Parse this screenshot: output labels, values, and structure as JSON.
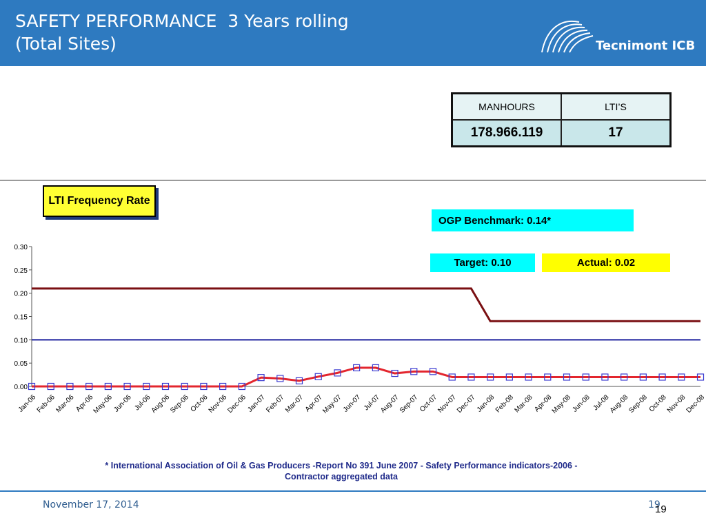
{
  "header": {
    "title": "SAFETY PERFORMANCE  3 Years rolling\n(Total Sites)",
    "brand": "Tecnimont ICB",
    "colors": {
      "banner": "#2e7ac0"
    }
  },
  "stats": {
    "manhours_label": "MANHOURS",
    "ltis_label": "LTI’S",
    "manhours_value": "178.966.119",
    "ltis_value": "17"
  },
  "lti_title": "LTI Frequency Rate",
  "benchmark": "OGP Benchmark: 0.14*",
  "target": "Target: 0.10",
  "actual": "Actual: 0.02",
  "footnote": "* International Association of Oil & Gas Producers -Report No 391 June 2007 -  Safety Performance indicators-2006 - Contractor aggregated data",
  "footer": {
    "date": "November 17, 2014",
    "page_a": "19",
    "page_b": "19"
  },
  "chart_data": {
    "type": "line",
    "categories": [
      "Jan-06",
      "Feb-06",
      "Mar-06",
      "Apr-06",
      "May-06",
      "Jun-06",
      "Jul-06",
      "Aug-06",
      "Sep-06",
      "Oct-06",
      "Nov-06",
      "Dec-06",
      "Jan-07",
      "Feb-07",
      "Mar-07",
      "Apr-07",
      "May-07",
      "Jun-07",
      "Jul-07",
      "Aug-07",
      "Sep-07",
      "Oct-07",
      "Nov-07",
      "Dec-07",
      "Jan-08",
      "Feb-08",
      "Mar-08",
      "Apr-08",
      "May-08",
      "Jun-08",
      "Jul-08",
      "Aug-08",
      "Sep-08",
      "Oct-08",
      "Nov-08",
      "Dec-08"
    ],
    "yticks": [
      "0.00",
      "0.05",
      "0.10",
      "0.15",
      "0.20",
      "0.25",
      "0.30"
    ],
    "ylim": [
      0,
      0.3
    ],
    "series": [
      {
        "name": "",
        "color": "#e3262e",
        "markers": true,
        "values": [
          0,
          0,
          0,
          0,
          0,
          0,
          0,
          0,
          0,
          0,
          0,
          0,
          0.019,
          0.017,
          0.012,
          0.021,
          0.029,
          0.04,
          0.04,
          0.028,
          0.032,
          0.032,
          0.02,
          0.02,
          0.02,
          0.02,
          0.02,
          0.02,
          0.02,
          0.02,
          0.02,
          0.02,
          0.02,
          0.02,
          0.02,
          0.02
        ]
      },
      {
        "name": "",
        "color": "#7a0f12",
        "markers": false,
        "values": [
          0.21,
          0.21,
          0.21,
          0.21,
          0.21,
          0.21,
          0.21,
          0.21,
          0.21,
          0.21,
          0.21,
          0.21,
          0.21,
          0.21,
          0.21,
          0.21,
          0.21,
          0.21,
          0.21,
          0.21,
          0.21,
          0.21,
          0.21,
          0.21,
          0.14,
          0.14,
          0.14,
          0.14,
          0.14,
          0.14,
          0.14,
          0.14,
          0.14,
          0.14,
          0.14,
          0.14
        ]
      },
      {
        "name": "",
        "color": "#1a1f9e",
        "markers": false,
        "values": [
          0.1,
          0.1,
          0.1,
          0.1,
          0.1,
          0.1,
          0.1,
          0.1,
          0.1,
          0.1,
          0.1,
          0.1,
          0.1,
          0.1,
          0.1,
          0.1,
          0.1,
          0.1,
          0.1,
          0.1,
          0.1,
          0.1,
          0.1,
          0.1,
          0.1,
          0.1,
          0.1,
          0.1,
          0.1,
          0.1,
          0.1,
          0.1,
          0.1,
          0.1,
          0.1,
          0.1
        ]
      }
    ],
    "grid": false,
    "marker_color": "#3a3ad0"
  }
}
